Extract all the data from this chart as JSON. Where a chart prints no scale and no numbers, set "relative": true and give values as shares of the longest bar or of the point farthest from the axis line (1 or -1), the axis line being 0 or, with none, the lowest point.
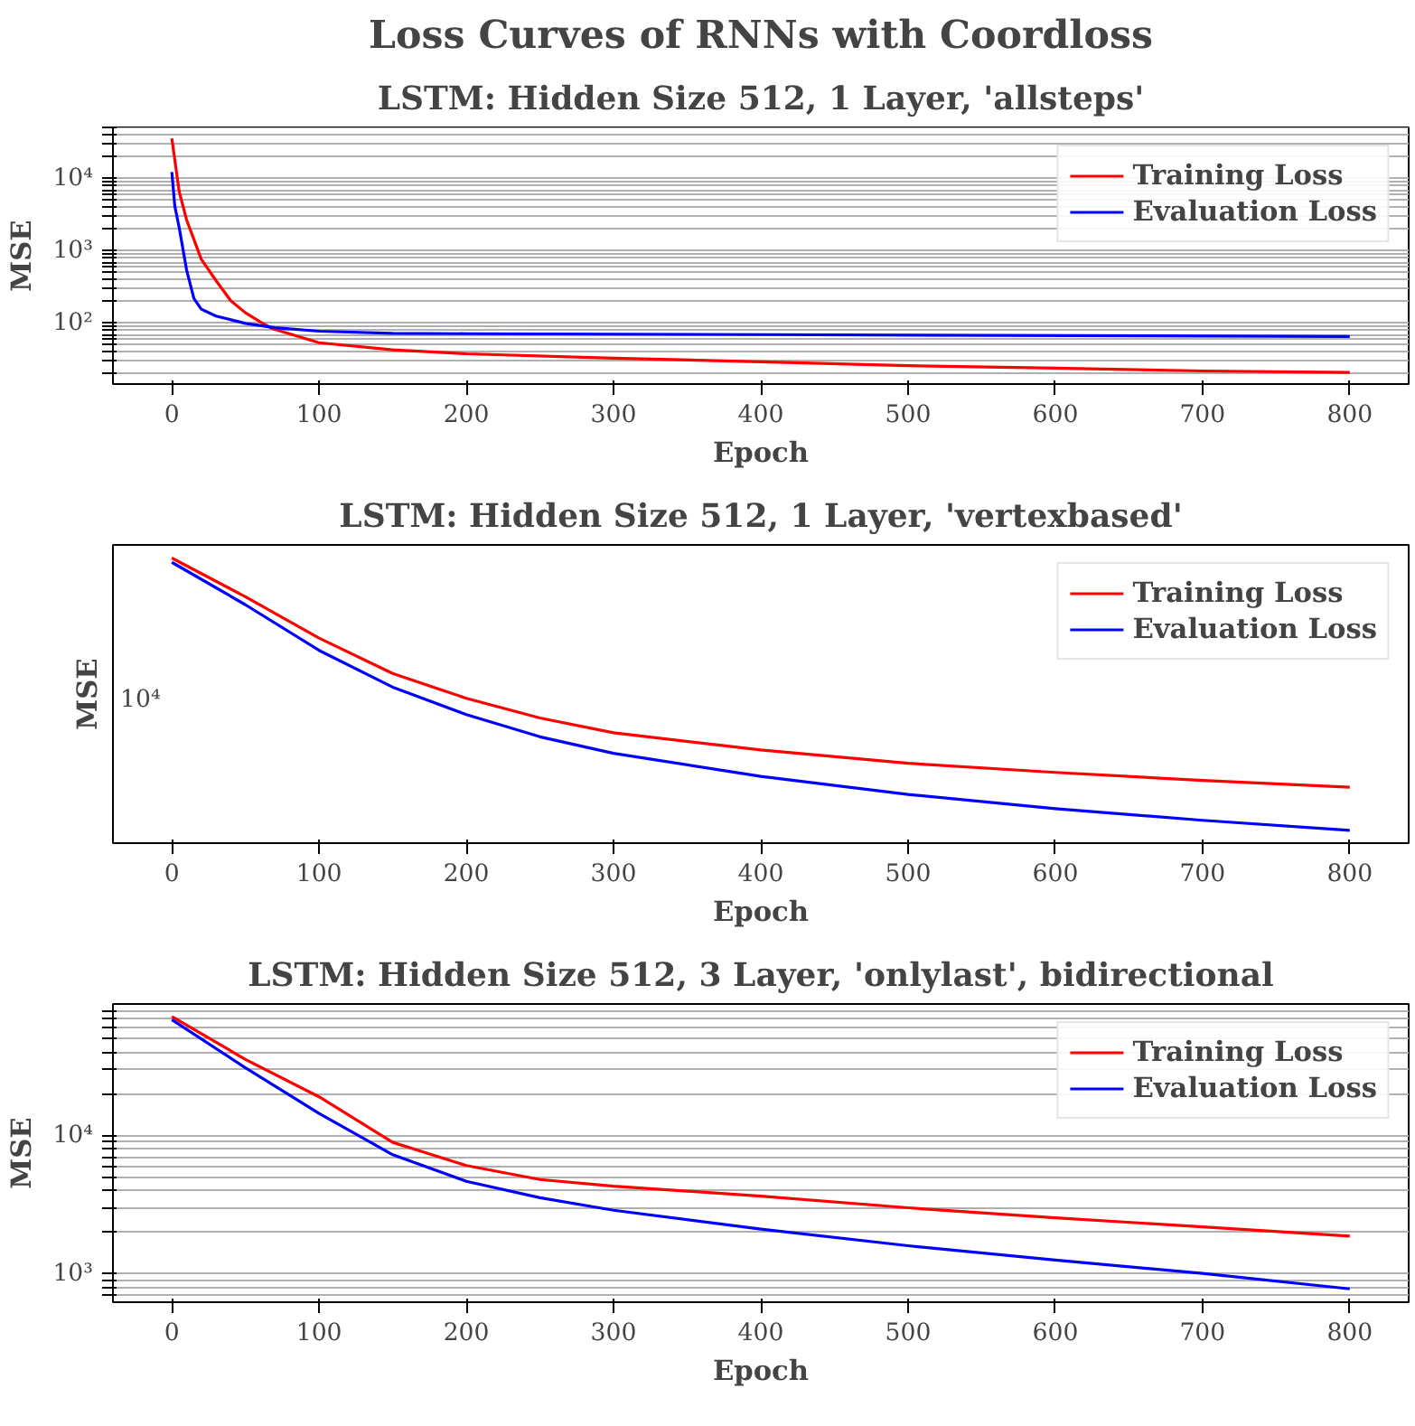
{
  "chart_data": [
    {
      "type": "line",
      "title": "Loss Curves of RNNs with Coordloss",
      "subtitle": "LSTM: Hidden Size 512, 1 Layer, 'allsteps'",
      "xlabel": "Epoch",
      "ylabel": "MSE",
      "log": "y",
      "grid": "y",
      "legend": "top right",
      "xlim": [
        -40,
        840
      ],
      "ylim": [
        14.5,
        51000
      ],
      "xticks": [
        0,
        100,
        200,
        300,
        400,
        500,
        600,
        700,
        800
      ],
      "yticks": [
        {
          "value": 20,
          "label": null
        },
        {
          "value": 30,
          "label": null
        },
        {
          "value": 40,
          "label": null
        },
        {
          "value": 50,
          "label": null
        },
        {
          "value": 60,
          "label": null
        },
        {
          "value": 70,
          "label": null
        },
        {
          "value": 80,
          "label": null
        },
        {
          "value": 90,
          "label": null
        },
        {
          "value": 100,
          "label": "10²"
        },
        {
          "value": 200,
          "label": null
        },
        {
          "value": 300,
          "label": null
        },
        {
          "value": 400,
          "label": null
        },
        {
          "value": 500,
          "label": null
        },
        {
          "value": 600,
          "label": null
        },
        {
          "value": 700,
          "label": null
        },
        {
          "value": 800,
          "label": null
        },
        {
          "value": 900,
          "label": null
        },
        {
          "value": 1000,
          "label": "10³"
        },
        {
          "value": 2000,
          "label": null
        },
        {
          "value": 3000,
          "label": null
        },
        {
          "value": 4000,
          "label": null
        },
        {
          "value": 5000,
          "label": null
        },
        {
          "value": 6000,
          "label": null
        },
        {
          "value": 7000,
          "label": null
        },
        {
          "value": 8000,
          "label": null
        },
        {
          "value": 9000,
          "label": null
        },
        {
          "value": 10000,
          "label": "10⁴"
        },
        {
          "value": 20000,
          "label": null
        },
        {
          "value": 30000,
          "label": null
        },
        {
          "value": 40000,
          "label": null
        },
        {
          "value": 50000,
          "label": null
        }
      ],
      "series": [
        {
          "name": "Training Loss",
          "color": "#ff0000",
          "x": [
            0,
            5,
            10,
            20,
            30,
            40,
            50,
            60,
            68,
            100,
            150,
            200,
            300,
            400,
            500,
            600,
            700,
            800
          ],
          "values": [
            36000,
            6600,
            2700,
            770,
            390,
            206,
            140,
            105,
            85,
            54,
            43,
            38,
            33,
            29.5,
            26,
            24,
            22,
            21
          ]
        },
        {
          "name": "Evaluation Loss",
          "color": "#0000ff",
          "x": [
            0,
            2,
            5,
            10,
            15,
            20,
            30,
            50,
            70,
            100,
            150,
            200,
            400,
            800
          ],
          "values": [
            12300,
            4200,
            2100,
            550,
            220,
            157,
            126,
            100,
            87,
            78,
            73,
            72,
            70,
            66
          ]
        }
      ]
    },
    {
      "type": "line",
      "subtitle": "LSTM: Hidden Size 512, 1 Layer, 'vertexbased'",
      "xlabel": "Epoch",
      "ylabel": "MSE",
      "relative": true,
      "legend": "top right",
      "annotations": [
        "10⁴"
      ],
      "xlim": [
        -40,
        840
      ],
      "xticks": [
        0,
        100,
        200,
        300,
        400,
        500,
        600,
        700,
        800
      ],
      "series": [
        {
          "name": "Training Loss",
          "color": "#ff0000",
          "x": [
            0,
            50,
            100,
            150,
            200,
            250,
            300,
            400,
            500,
            600,
            700,
            800
          ],
          "values": [
            1.0,
            0.864,
            0.719,
            0.595,
            0.508,
            0.439,
            0.387,
            0.327,
            0.28,
            0.248,
            0.22,
            0.196
          ]
        },
        {
          "name": "Evaluation Loss",
          "color": "#0000ff",
          "x": [
            0,
            50,
            100,
            150,
            200,
            250,
            300,
            400,
            500,
            600,
            700,
            800
          ],
          "values": [
            0.985,
            0.836,
            0.676,
            0.547,
            0.451,
            0.373,
            0.315,
            0.234,
            0.171,
            0.121,
            0.08,
            0.045
          ]
        }
      ]
    },
    {
      "type": "line",
      "subtitle": "LSTM: Hidden Size 512, 3 Layer, 'onlylast', bidirectional",
      "xlabel": "Epoch",
      "ylabel": "MSE",
      "log": "y",
      "grid": "y",
      "legend": "top right",
      "xlim": [
        -40,
        840
      ],
      "ylim": [
        625,
        89600
      ],
      "xticks": [
        0,
        100,
        200,
        300,
        400,
        500,
        600,
        700,
        800
      ],
      "yticks": [
        {
          "value": 700,
          "label": null
        },
        {
          "value": 800,
          "label": null
        },
        {
          "value": 900,
          "label": null
        },
        {
          "value": 1000,
          "label": "10³"
        },
        {
          "value": 2000,
          "label": null
        },
        {
          "value": 3000,
          "label": null
        },
        {
          "value": 4000,
          "label": null
        },
        {
          "value": 5000,
          "label": null
        },
        {
          "value": 6000,
          "label": null
        },
        {
          "value": 7000,
          "label": null
        },
        {
          "value": 8000,
          "label": null
        },
        {
          "value": 9000,
          "label": null
        },
        {
          "value": 10000,
          "label": "10⁴"
        },
        {
          "value": 20000,
          "label": null
        },
        {
          "value": 30000,
          "label": null
        },
        {
          "value": 40000,
          "label": null
        },
        {
          "value": 50000,
          "label": null
        },
        {
          "value": 60000,
          "label": null
        },
        {
          "value": 70000,
          "label": null
        },
        {
          "value": 80000,
          "label": null
        }
      ],
      "series": [
        {
          "name": "Training Loss",
          "color": "#ff0000",
          "x": [
            0,
            50,
            100,
            150,
            200,
            250,
            300,
            400,
            500,
            600,
            700,
            800
          ],
          "values": [
            72800,
            35600,
            19100,
            8950,
            6080,
            4820,
            4310,
            3660,
            3010,
            2550,
            2190,
            1880
          ]
        },
        {
          "name": "Evaluation Loss",
          "color": "#0000ff",
          "x": [
            0,
            50,
            100,
            150,
            200,
            250,
            300,
            400,
            500,
            600,
            700,
            800
          ],
          "values": [
            68900,
            31000,
            14500,
            7280,
            4680,
            3560,
            2890,
            2110,
            1600,
            1260,
            1010,
            780
          ]
        }
      ]
    }
  ]
}
